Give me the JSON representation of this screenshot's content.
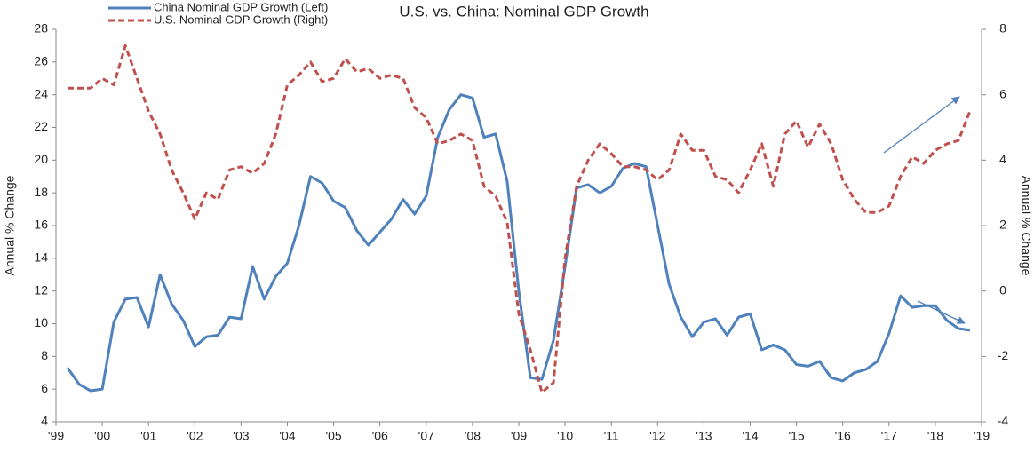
{
  "chart_data": {
    "type": "line",
    "title": "U.S. vs. China: Nominal GDP Growth",
    "y_label": "Annual % Change",
    "y2_label": "Annual % Change",
    "xlim": [
      1999,
      2019
    ],
    "xticks": [
      {
        "value": 1999,
        "label": "'99"
      },
      {
        "value": 2000,
        "label": "'00"
      },
      {
        "value": 2001,
        "label": "'01"
      },
      {
        "value": 2002,
        "label": "'02"
      },
      {
        "value": 2003,
        "label": "'03"
      },
      {
        "value": 2004,
        "label": "'04"
      },
      {
        "value": 2005,
        "label": "'05"
      },
      {
        "value": 2006,
        "label": "'06"
      },
      {
        "value": 2007,
        "label": "'07"
      },
      {
        "value": 2008,
        "label": "'08"
      },
      {
        "value": 2009,
        "label": "'09"
      },
      {
        "value": 2010,
        "label": "'10"
      },
      {
        "value": 2011,
        "label": "'11"
      },
      {
        "value": 2012,
        "label": "'12"
      },
      {
        "value": 2013,
        "label": "'13"
      },
      {
        "value": 2014,
        "label": "'14"
      },
      {
        "value": 2015,
        "label": "'15"
      },
      {
        "value": 2016,
        "label": "'16"
      },
      {
        "value": 2017,
        "label": "'17"
      },
      {
        "value": 2018,
        "label": "'18"
      },
      {
        "value": 2019,
        "label": "'19"
      }
    ],
    "ylim": [
      4,
      28
    ],
    "yticks": [
      4,
      6,
      8,
      10,
      12,
      14,
      16,
      18,
      20,
      22,
      24,
      26,
      28
    ],
    "y2lim": [
      -4,
      8
    ],
    "y2ticks": [
      -4,
      -2,
      0,
      2,
      4,
      6,
      8
    ],
    "grid": false,
    "legend": "top-left",
    "x": [
      1999.25,
      1999.5,
      1999.75,
      2000,
      2000.25,
      2000.5,
      2000.75,
      2001,
      2001.25,
      2001.5,
      2001.75,
      2002,
      2002.25,
      2002.5,
      2002.75,
      2003,
      2003.25,
      2003.5,
      2003.75,
      2004,
      2004.25,
      2004.5,
      2004.75,
      2005,
      2005.25,
      2005.5,
      2005.75,
      2006,
      2006.25,
      2006.5,
      2006.75,
      2007,
      2007.25,
      2007.5,
      2007.75,
      2008,
      2008.25,
      2008.5,
      2008.75,
      2009,
      2009.25,
      2009.5,
      2009.75,
      2010,
      2010.25,
      2010.5,
      2010.75,
      2011,
      2011.25,
      2011.5,
      2011.75,
      2012,
      2012.25,
      2012.5,
      2012.75,
      2013,
      2013.25,
      2013.5,
      2013.75,
      2014,
      2014.25,
      2014.5,
      2014.75,
      2015,
      2015.25,
      2015.5,
      2015.75,
      2016,
      2016.25,
      2016.5,
      2016.75,
      2017,
      2017.25,
      2017.5,
      2017.75,
      2018,
      2018.25,
      2018.5,
      2018.75
    ],
    "series": [
      {
        "name": "China Nominal GDP Growth (Left)",
        "color": "#4f81bd",
        "line_style": "solid",
        "axis": "y",
        "values": [
          7.3,
          6.3,
          5.9,
          6.0,
          10.1,
          11.5,
          11.6,
          9.8,
          13.0,
          11.2,
          10.2,
          8.6,
          9.2,
          9.3,
          10.4,
          10.3,
          13.5,
          11.5,
          12.9,
          13.7,
          16.0,
          19.0,
          18.6,
          17.5,
          17.1,
          15.7,
          14.8,
          15.6,
          16.4,
          17.6,
          16.7,
          17.8,
          21.4,
          23.1,
          24.0,
          23.8,
          21.4,
          21.6,
          18.7,
          12.0,
          6.7,
          6.6,
          9.0,
          13.5,
          18.3,
          18.5,
          18.0,
          18.4,
          19.5,
          19.8,
          19.6,
          16.0,
          12.4,
          10.4,
          9.2,
          10.1,
          10.3,
          9.3,
          10.4,
          10.6,
          8.4,
          8.7,
          8.4,
          7.5,
          7.4,
          7.7,
          6.7,
          6.5,
          7.0,
          7.2,
          7.7,
          9.4,
          11.7,
          11.0,
          11.1,
          11.1,
          10.2,
          9.7,
          9.6
        ]
      },
      {
        "name": "U.S. Nominal GDP Growth (Right)",
        "color": "#c0504d",
        "line_style": "dashed",
        "axis": "y2",
        "values": [
          6.2,
          6.2,
          6.2,
          6.5,
          6.3,
          7.5,
          6.5,
          5.5,
          4.8,
          3.7,
          3.0,
          2.2,
          3.0,
          2.8,
          3.7,
          3.8,
          3.6,
          3.9,
          4.8,
          6.3,
          6.6,
          7.0,
          6.4,
          6.5,
          7.1,
          6.7,
          6.8,
          6.5,
          6.6,
          6.5,
          5.6,
          5.3,
          4.5,
          4.6,
          4.8,
          4.6,
          3.2,
          2.9,
          2.1,
          -0.7,
          -1.8,
          -3.1,
          -2.8,
          1.0,
          3.2,
          4.0,
          4.5,
          4.2,
          3.8,
          3.8,
          3.7,
          3.4,
          3.7,
          4.8,
          4.3,
          4.3,
          3.5,
          3.4,
          3.0,
          3.7,
          4.5,
          3.2,
          4.8,
          5.2,
          4.4,
          5.1,
          4.5,
          3.4,
          2.8,
          2.4,
          2.4,
          2.6,
          3.5,
          4.1,
          3.9,
          4.3,
          4.5,
          4.6,
          5.5
        ]
      }
    ]
  }
}
